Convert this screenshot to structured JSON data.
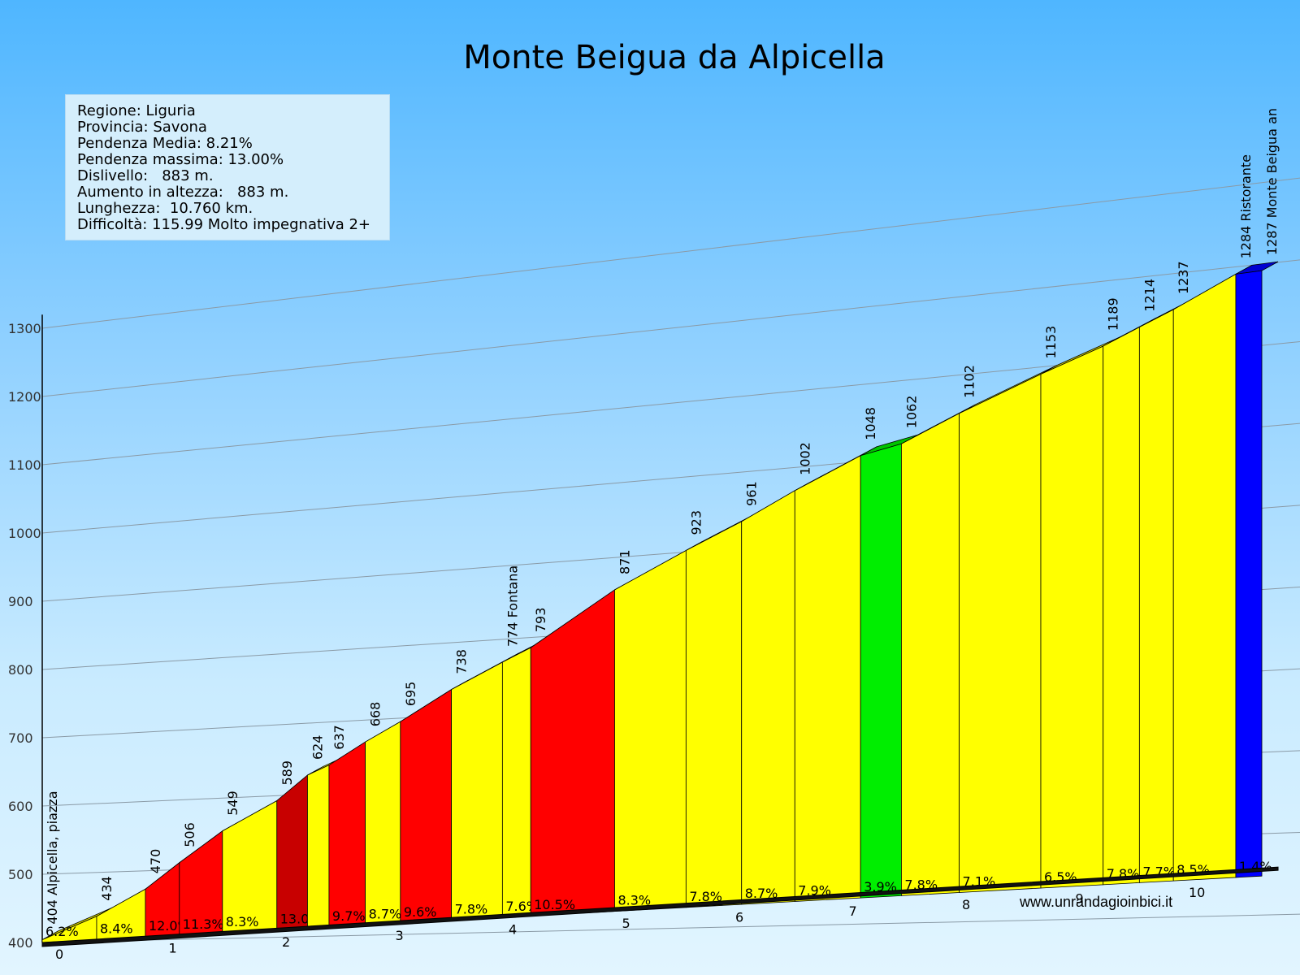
{
  "title": "Monte Beigua da Alpicella",
  "info": {
    "lines": [
      "Regione: Liguria",
      "Provincia: Savona",
      "Pendenza Media: 8.21%",
      "Pendenza massima: 13.00%",
      "Dislivello:   883 m.",
      "Aumento in altezza:   883 m.",
      "Lunghezza:  10.760 km.",
      "Difficoltà: 115.99 Molto impegnativa 2+"
    ]
  },
  "credit": "www.unrandagioinbici.it",
  "colors": {
    "yellow": "#ffff00",
    "red": "#ff0000",
    "dark_red": "#c80000",
    "green": "#00ee00",
    "blue": "#0000ff"
  },
  "chart_data": {
    "type": "area",
    "title": "Monte Beigua da Alpicella",
    "xlabel": "",
    "ylabel": "",
    "xlim": [
      0,
      10.76
    ],
    "ylim": [
      400,
      1300
    ],
    "y_ticks": [
      400,
      500,
      600,
      700,
      800,
      900,
      1000,
      1100,
      1200,
      1300
    ],
    "x_ticks": [
      0,
      1,
      2,
      3,
      4,
      5,
      6,
      7,
      8,
      9,
      10
    ],
    "grid": true,
    "segments": [
      {
        "start_km": 0.0,
        "end_km": 0.48,
        "start_alt": 404,
        "end_alt": 434,
        "grade": "6.2%",
        "color": "yellow"
      },
      {
        "start_km": 0.48,
        "end_km": 0.91,
        "start_alt": 434,
        "end_alt": 470,
        "grade": "8.4%",
        "color": "yellow"
      },
      {
        "start_km": 0.91,
        "end_km": 1.21,
        "start_alt": 470,
        "end_alt": 506,
        "grade": "12.0%",
        "color": "red"
      },
      {
        "start_km": 1.21,
        "end_km": 1.59,
        "start_alt": 506,
        "end_alt": 549,
        "grade": "11.3%",
        "color": "red"
      },
      {
        "start_km": 1.59,
        "end_km": 2.07,
        "start_alt": 549,
        "end_alt": 589,
        "grade": "8.3%",
        "color": "yellow"
      },
      {
        "start_km": 2.07,
        "end_km": 2.34,
        "start_alt": 589,
        "end_alt": 624,
        "grade": "13.0",
        "color": "dark_red"
      },
      {
        "start_km": 2.34,
        "end_km": 2.53,
        "start_alt": 624,
        "end_alt": 637,
        "grade": "",
        "color": "yellow"
      },
      {
        "start_km": 2.53,
        "end_km": 2.85,
        "start_alt": 637,
        "end_alt": 668,
        "grade": "9.7%",
        "color": "red"
      },
      {
        "start_km": 2.85,
        "end_km": 3.16,
        "start_alt": 668,
        "end_alt": 695,
        "grade": "8.7%",
        "color": "yellow"
      },
      {
        "start_km": 3.16,
        "end_km": 3.61,
        "start_alt": 695,
        "end_alt": 738,
        "grade": "9.6%",
        "color": "red"
      },
      {
        "start_km": 3.61,
        "end_km": 4.06,
        "start_alt": 738,
        "end_alt": 774,
        "grade": "7.8%",
        "color": "yellow"
      },
      {
        "start_km": 4.06,
        "end_km": 4.31,
        "start_alt": 774,
        "end_alt": 793,
        "grade": "7.6%",
        "color": "yellow"
      },
      {
        "start_km": 4.31,
        "end_km": 5.05,
        "start_alt": 793,
        "end_alt": 871,
        "grade": "10.5%",
        "color": "red"
      },
      {
        "start_km": 5.05,
        "end_km": 5.68,
        "start_alt": 871,
        "end_alt": 923,
        "grade": "8.3%",
        "color": "yellow"
      },
      {
        "start_km": 5.68,
        "end_km": 6.17,
        "start_alt": 923,
        "end_alt": 961,
        "grade": "7.8%",
        "color": "yellow"
      },
      {
        "start_km": 6.17,
        "end_km": 6.64,
        "start_alt": 961,
        "end_alt": 1002,
        "grade": "8.7%",
        "color": "yellow"
      },
      {
        "start_km": 6.64,
        "end_km": 7.22,
        "start_alt": 1002,
        "end_alt": 1048,
        "grade": "7.9%",
        "color": "yellow"
      },
      {
        "start_km": 7.22,
        "end_km": 7.58,
        "start_alt": 1048,
        "end_alt": 1062,
        "grade": "3.9%",
        "color": "green"
      },
      {
        "start_km": 7.58,
        "end_km": 8.09,
        "start_alt": 1062,
        "end_alt": 1102,
        "grade": "7.8%",
        "color": "yellow"
      },
      {
        "start_km": 8.09,
        "end_km": 8.81,
        "start_alt": 1102,
        "end_alt": 1153,
        "grade": "7.1%",
        "color": "yellow"
      },
      {
        "start_km": 8.81,
        "end_km": 9.36,
        "start_alt": 1153,
        "end_alt": 1189,
        "grade": "6.5%",
        "color": "yellow"
      },
      {
        "start_km": 9.36,
        "end_km": 9.68,
        "start_alt": 1189,
        "end_alt": 1214,
        "grade": "7.8%",
        "color": "yellow"
      },
      {
        "start_km": 9.68,
        "end_km": 9.98,
        "start_alt": 1214,
        "end_alt": 1237,
        "grade": "7.7%",
        "color": "yellow"
      },
      {
        "start_km": 9.98,
        "end_km": 10.53,
        "start_alt": 1237,
        "end_alt": 1284,
        "grade": "8.5%",
        "color": "yellow"
      },
      {
        "start_km": 10.53,
        "end_km": 10.76,
        "start_alt": 1284,
        "end_alt": 1287,
        "grade": "1.4%",
        "color": "blue"
      }
    ],
    "altitude_labels": [
      {
        "km": 0.0,
        "text": "404 Alpicella, piazza"
      },
      {
        "km": 0.48,
        "text": "434"
      },
      {
        "km": 0.91,
        "text": "470"
      },
      {
        "km": 1.21,
        "text": "506"
      },
      {
        "km": 1.59,
        "text": "549"
      },
      {
        "km": 2.07,
        "text": "589"
      },
      {
        "km": 2.34,
        "text": "624"
      },
      {
        "km": 2.53,
        "text": "637"
      },
      {
        "km": 2.85,
        "text": "668"
      },
      {
        "km": 3.16,
        "text": "695"
      },
      {
        "km": 3.61,
        "text": "738"
      },
      {
        "km": 4.06,
        "text": "774 Fontana"
      },
      {
        "km": 4.31,
        "text": "793"
      },
      {
        "km": 5.05,
        "text": "871"
      },
      {
        "km": 5.68,
        "text": "923"
      },
      {
        "km": 6.17,
        "text": "961"
      },
      {
        "km": 6.64,
        "text": "1002"
      },
      {
        "km": 7.22,
        "text": "1048"
      },
      {
        "km": 7.58,
        "text": "1062"
      },
      {
        "km": 8.09,
        "text": "1102"
      },
      {
        "km": 8.81,
        "text": "1153"
      },
      {
        "km": 9.36,
        "text": "1189"
      },
      {
        "km": 9.68,
        "text": "1214"
      },
      {
        "km": 9.98,
        "text": "1237"
      },
      {
        "km": 10.53,
        "text": "1284 Ristorante"
      },
      {
        "km": 10.76,
        "text": "1287 Monte Beigua an"
      }
    ]
  }
}
